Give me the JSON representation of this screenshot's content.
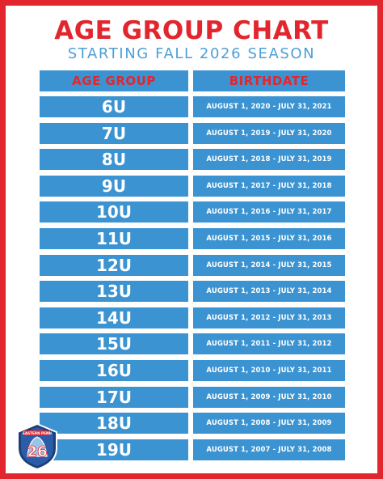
{
  "header": {
    "title": "AGE GROUP CHART",
    "subtitle": "STARTING FALL 2026 SEASON"
  },
  "table": {
    "columns": [
      "AGE GROUP",
      "BIRTHDATE"
    ],
    "rows": [
      {
        "age": "6U",
        "birthdate": "AUGUST 1, 2020 - JULY 31, 2021"
      },
      {
        "age": "7U",
        "birthdate": "AUGUST 1, 2019 - JULY 31, 2020"
      },
      {
        "age": "8U",
        "birthdate": "AUGUST 1, 2018 - JULY 31, 2019"
      },
      {
        "age": "9U",
        "birthdate": "AUGUST 1, 2017 - JULY 31, 2018"
      },
      {
        "age": "10U",
        "birthdate": "AUGUST 1, 2016 - JULY 31, 2017"
      },
      {
        "age": "11U",
        "birthdate": "AUGUST 1, 2015 - JULY 31, 2016"
      },
      {
        "age": "12U",
        "birthdate": "AUGUST 1, 2014 - JULY 31, 2015"
      },
      {
        "age": "13U",
        "birthdate": "AUGUST 1, 2013 - JULY 31, 2014"
      },
      {
        "age": "14U",
        "birthdate": "AUGUST 1, 2012 - JULY 31, 2013"
      },
      {
        "age": "15U",
        "birthdate": "AUGUST 1, 2011 - JULY 31, 2012"
      },
      {
        "age": "16U",
        "birthdate": "AUGUST 1, 2010 - JULY 31, 2011"
      },
      {
        "age": "17U",
        "birthdate": "AUGUST 1, 2009 - JULY 31, 2010"
      },
      {
        "age": "18U",
        "birthdate": "AUGUST 1, 2008 - JULY 31, 2009"
      },
      {
        "age": "19U",
        "birthdate": "AUGUST 1, 2007 - JULY 31, 2008"
      }
    ]
  },
  "logo": {
    "icon": "liberty-bell-crest-icon",
    "text": "EASTERN PENN",
    "numeral": "26"
  },
  "colors": {
    "border": "#e3262e",
    "title": "#e3262e",
    "subtitle": "#4e9fd6",
    "cell_bg": "#3b93d1",
    "cell_text": "#ffffff",
    "header_text": "#e3262e"
  }
}
